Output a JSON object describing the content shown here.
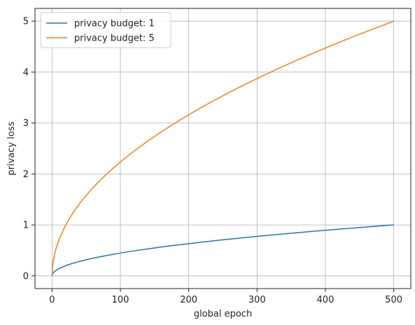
{
  "chart_data": {
    "type": "line",
    "title": "",
    "xlabel": "global epoch",
    "ylabel": "privacy loss",
    "xlim": [
      -25,
      525
    ],
    "ylim": [
      -0.25,
      5.25
    ],
    "xticks": [
      0,
      100,
      200,
      300,
      400,
      500
    ],
    "yticks": [
      0,
      1,
      2,
      3,
      4,
      5
    ],
    "xtick_labels": [
      "0",
      "100",
      "200",
      "300",
      "400",
      "500"
    ],
    "ytick_labels": [
      "0",
      "1",
      "2",
      "3",
      "4",
      "5"
    ],
    "grid": true,
    "legend_position": "top-left",
    "x": [
      0,
      1,
      2,
      5,
      10,
      20,
      30,
      40,
      50,
      60,
      70,
      80,
      90,
      100,
      120,
      140,
      160,
      180,
      200,
      220,
      240,
      260,
      280,
      300,
      320,
      340,
      360,
      380,
      400,
      420,
      440,
      460,
      480,
      500
    ],
    "series": [
      {
        "name": "privacy budget: 1",
        "color": "#1f77b4",
        "values": [
          0,
          0.045,
          0.063,
          0.1,
          0.141,
          0.2,
          0.245,
          0.283,
          0.316,
          0.346,
          0.374,
          0.4,
          0.424,
          0.447,
          0.49,
          0.529,
          0.566,
          0.6,
          0.632,
          0.663,
          0.693,
          0.721,
          0.748,
          0.775,
          0.8,
          0.825,
          0.849,
          0.872,
          0.894,
          0.917,
          0.938,
          0.959,
          0.98,
          1.0
        ]
      },
      {
        "name": "privacy budget: 5",
        "color": "#ff7f0e",
        "values": [
          0,
          0.224,
          0.316,
          0.5,
          0.707,
          1.0,
          1.225,
          1.414,
          1.581,
          1.732,
          1.871,
          2.0,
          2.121,
          2.236,
          2.449,
          2.646,
          2.828,
          3.0,
          3.162,
          3.317,
          3.464,
          3.606,
          3.742,
          3.873,
          4.0,
          4.123,
          4.243,
          4.359,
          4.472,
          4.583,
          4.69,
          4.796,
          4.899,
          5.0
        ]
      }
    ]
  }
}
